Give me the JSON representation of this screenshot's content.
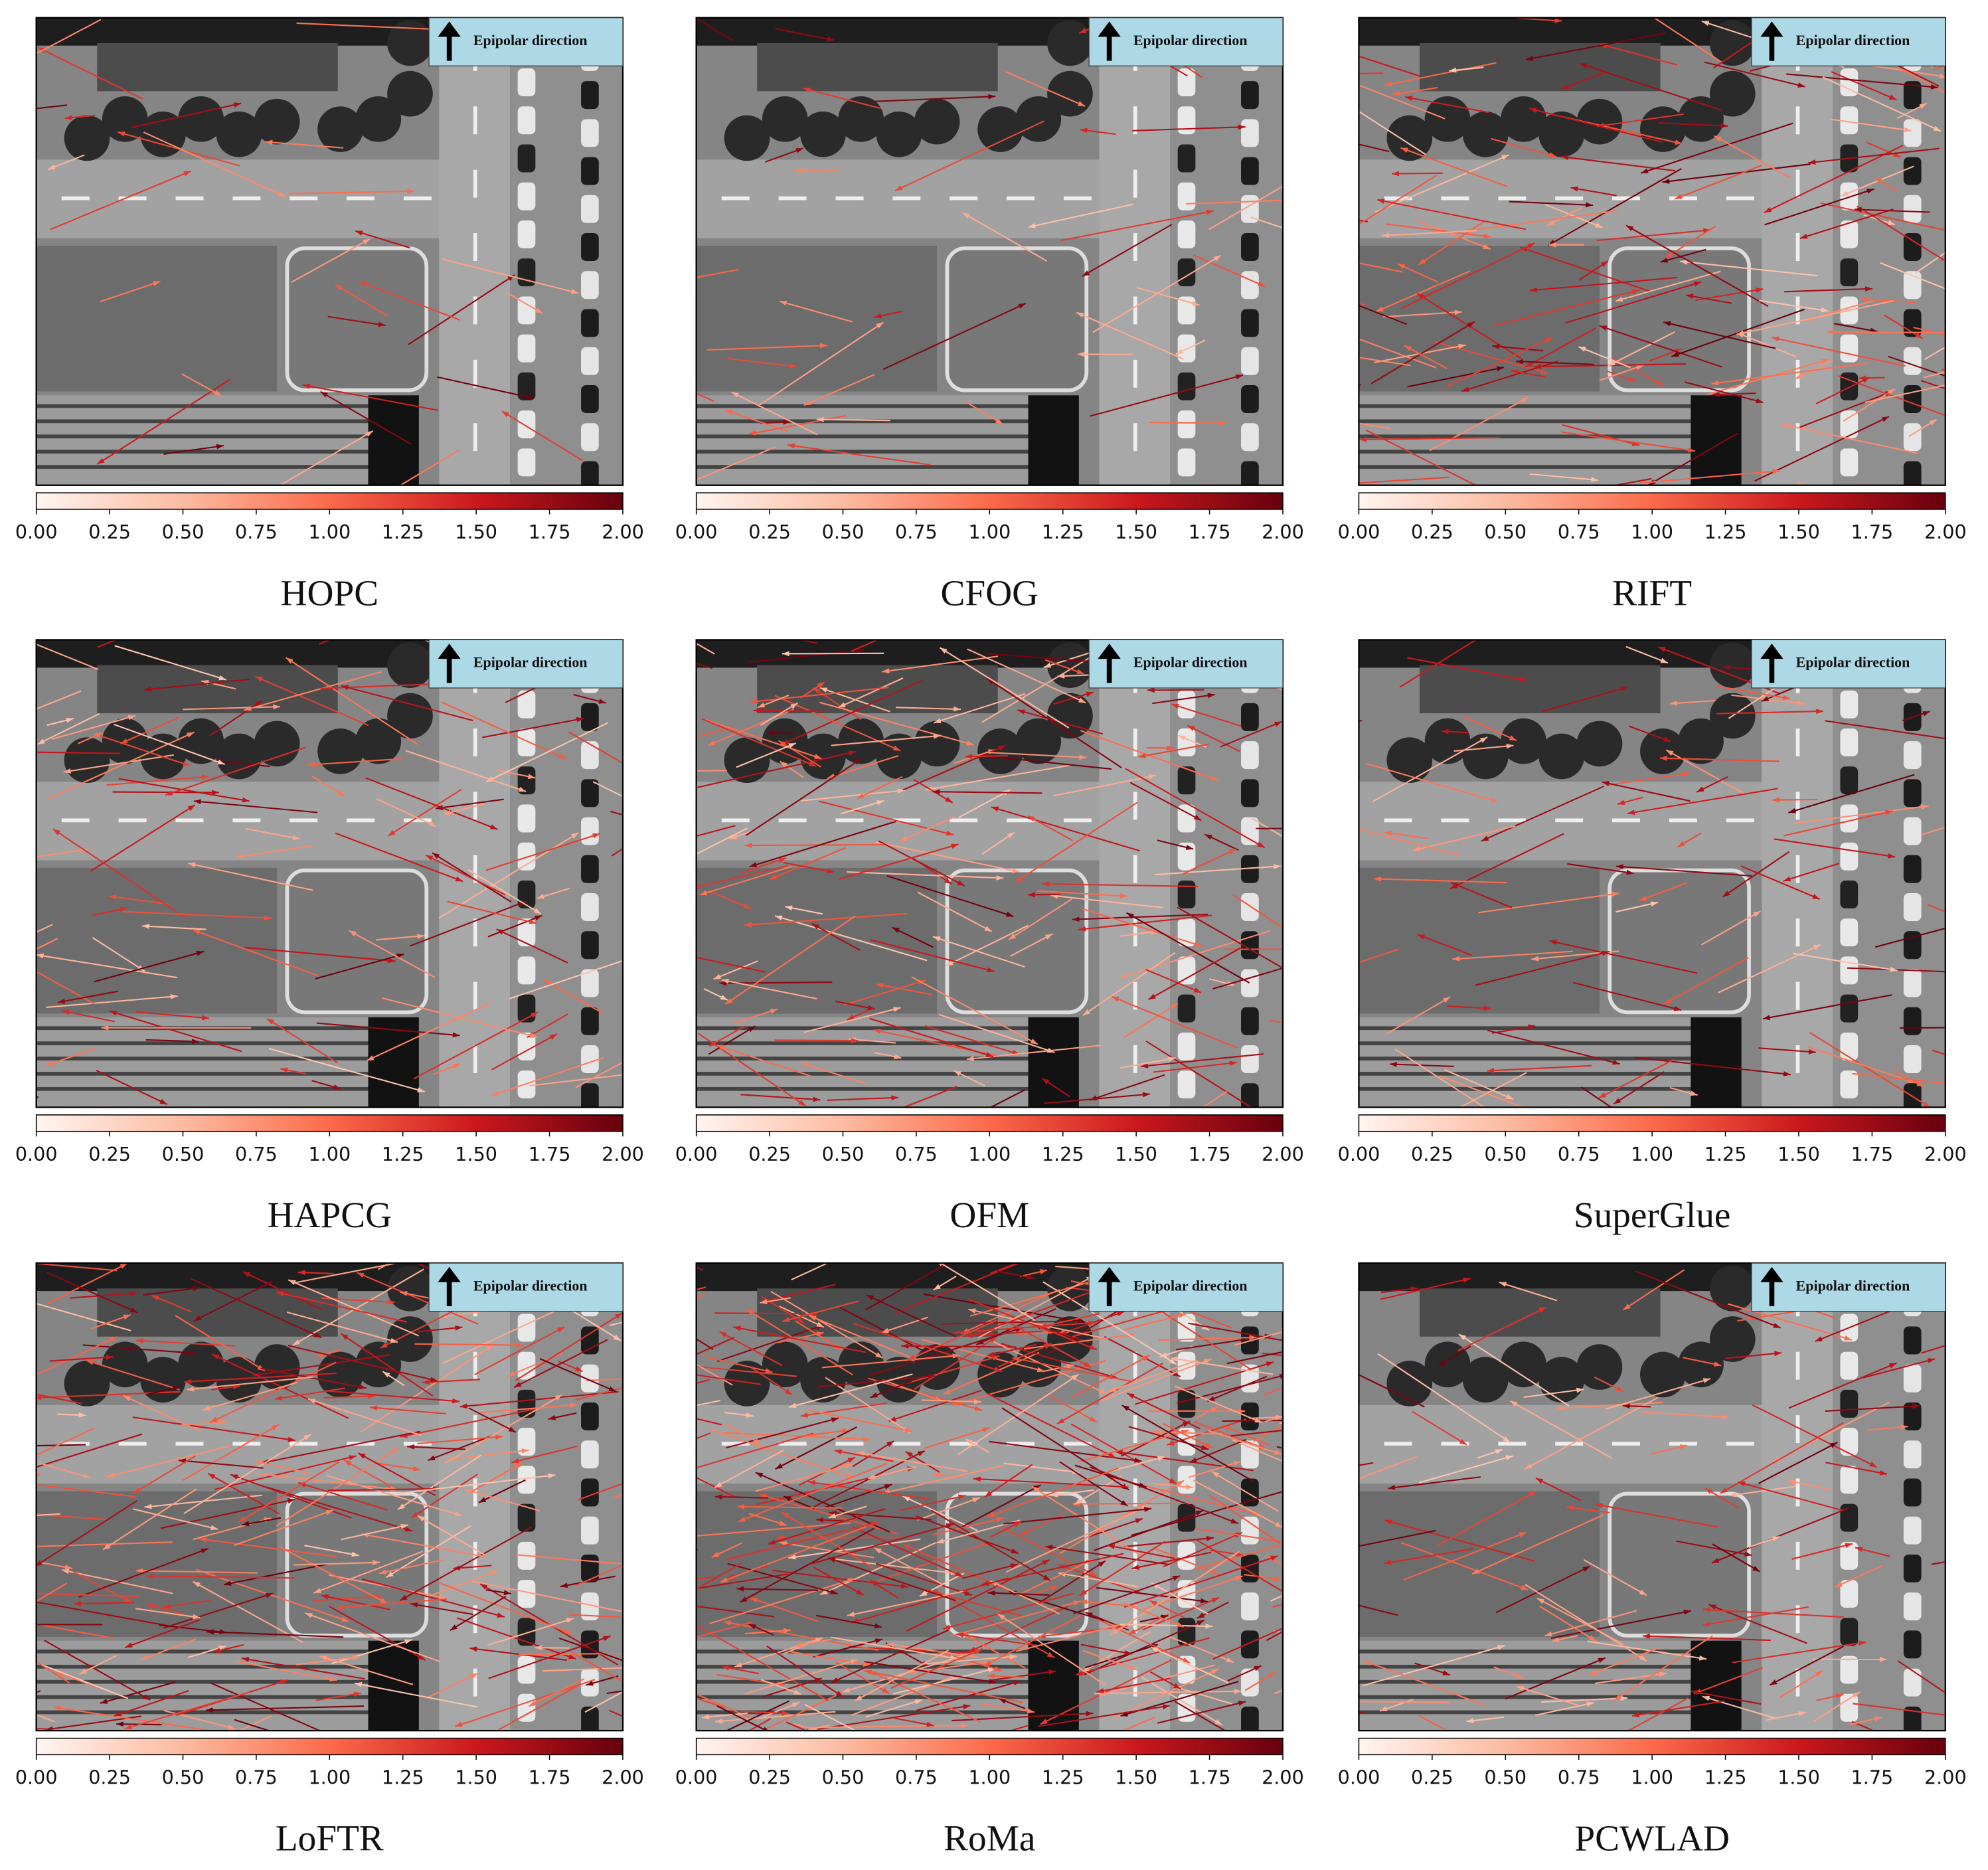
{
  "panels": [
    {
      "label": "HOPC",
      "annotation": "Epipolar direction",
      "colorbar": {
        "lim": [
          0,
          2
        ],
        "ticks": [
          {
            "value": 0,
            "label": "0.00"
          },
          {
            "value": 0.25,
            "label": "0.25"
          },
          {
            "value": 0.5,
            "label": "0.50"
          },
          {
            "value": 0.75,
            "label": "0.75"
          },
          {
            "value": 1,
            "label": "1.00"
          },
          {
            "value": 1.25,
            "label": "1.25"
          },
          {
            "value": 1.5,
            "label": "1.50"
          },
          {
            "value": 1.75,
            "label": "1.75"
          },
          {
            "value": 2,
            "label": "2.00"
          }
        ]
      }
    },
    {
      "label": "CFOG",
      "annotation": "Epipolar direction",
      "colorbar": {
        "lim": [
          0,
          2
        ],
        "ticks": [
          {
            "value": 0,
            "label": "0.00"
          },
          {
            "value": 0.25,
            "label": "0.25"
          },
          {
            "value": 0.5,
            "label": "0.50"
          },
          {
            "value": 0.75,
            "label": "0.75"
          },
          {
            "value": 1,
            "label": "1.00"
          },
          {
            "value": 1.25,
            "label": "1.25"
          },
          {
            "value": 1.5,
            "label": "1.50"
          },
          {
            "value": 1.75,
            "label": "1.75"
          },
          {
            "value": 2,
            "label": "2.00"
          }
        ]
      }
    },
    {
      "label": "RIFT",
      "annotation": "Epipolar direction",
      "colorbar": {
        "lim": [
          0,
          2
        ],
        "ticks": [
          {
            "value": 0,
            "label": "0.00"
          },
          {
            "value": 0.25,
            "label": "0.25"
          },
          {
            "value": 0.5,
            "label": "0.50"
          },
          {
            "value": 0.75,
            "label": "0.75"
          },
          {
            "value": 1,
            "label": "1.00"
          },
          {
            "value": 1.25,
            "label": "1.25"
          },
          {
            "value": 1.5,
            "label": "1.50"
          },
          {
            "value": 1.75,
            "label": "1.75"
          },
          {
            "value": 2,
            "label": "2.00"
          }
        ]
      }
    },
    {
      "label": "HAPCG",
      "annotation": "Epipolar direction",
      "colorbar": {
        "lim": [
          0,
          2
        ],
        "ticks": [
          {
            "value": 0,
            "label": "0.00"
          },
          {
            "value": 0.25,
            "label": "0.25"
          },
          {
            "value": 0.5,
            "label": "0.50"
          },
          {
            "value": 0.75,
            "label": "0.75"
          },
          {
            "value": 1,
            "label": "1.00"
          },
          {
            "value": 1.25,
            "label": "1.25"
          },
          {
            "value": 1.5,
            "label": "1.50"
          },
          {
            "value": 1.75,
            "label": "1.75"
          },
          {
            "value": 2,
            "label": "2.00"
          }
        ]
      }
    },
    {
      "label": "OFM",
      "annotation": "Epipolar direction",
      "colorbar": {
        "lim": [
          0,
          2
        ],
        "ticks": [
          {
            "value": 0,
            "label": "0.00"
          },
          {
            "value": 0.25,
            "label": "0.25"
          },
          {
            "value": 0.5,
            "label": "0.50"
          },
          {
            "value": 0.75,
            "label": "0.75"
          },
          {
            "value": 1,
            "label": "1.00"
          },
          {
            "value": 1.25,
            "label": "1.25"
          },
          {
            "value": 1.5,
            "label": "1.50"
          },
          {
            "value": 1.75,
            "label": "1.75"
          },
          {
            "value": 2,
            "label": "2.00"
          }
        ]
      }
    },
    {
      "label": "SuperGlue",
      "annotation": "Epipolar direction",
      "colorbar": {
        "lim": [
          0,
          2
        ],
        "ticks": [
          {
            "value": 0,
            "label": "0.00"
          },
          {
            "value": 0.25,
            "label": "0.25"
          },
          {
            "value": 0.5,
            "label": "0.50"
          },
          {
            "value": 0.75,
            "label": "0.75"
          },
          {
            "value": 1,
            "label": "1.00"
          },
          {
            "value": 1.25,
            "label": "1.25"
          },
          {
            "value": 1.5,
            "label": "1.50"
          },
          {
            "value": 1.75,
            "label": "1.75"
          },
          {
            "value": 2,
            "label": "2.00"
          }
        ]
      }
    },
    {
      "label": "LoFTR",
      "annotation": "Epipolar direction",
      "colorbar": {
        "lim": [
          0,
          2
        ],
        "ticks": [
          {
            "value": 0,
            "label": "0.00"
          },
          {
            "value": 0.25,
            "label": "0.25"
          },
          {
            "value": 0.5,
            "label": "0.50"
          },
          {
            "value": 0.75,
            "label": "0.75"
          },
          {
            "value": 1,
            "label": "1.00"
          },
          {
            "value": 1.25,
            "label": "1.25"
          },
          {
            "value": 1.5,
            "label": "1.50"
          },
          {
            "value": 1.75,
            "label": "1.75"
          },
          {
            "value": 2,
            "label": "2.00"
          }
        ]
      }
    },
    {
      "label": "RoMa",
      "annotation": "Epipolar direction",
      "colorbar": {
        "lim": [
          0,
          2
        ],
        "ticks": [
          {
            "value": 0,
            "label": "0.00"
          },
          {
            "value": 0.25,
            "label": "0.25"
          },
          {
            "value": 0.5,
            "label": "0.50"
          },
          {
            "value": 0.75,
            "label": "0.75"
          },
          {
            "value": 1,
            "label": "1.00"
          },
          {
            "value": 1.25,
            "label": "1.25"
          },
          {
            "value": 1.5,
            "label": "1.50"
          },
          {
            "value": 1.75,
            "label": "1.75"
          },
          {
            "value": 2,
            "label": "2.00"
          }
        ]
      }
    },
    {
      "label": "PCWLAD",
      "annotation": "Epipolar direction",
      "colorbar": {
        "lim": [
          0,
          2
        ],
        "ticks": [
          {
            "value": 0,
            "label": "0.00"
          },
          {
            "value": 0.25,
            "label": "0.25"
          },
          {
            "value": 0.5,
            "label": "0.50"
          },
          {
            "value": 0.75,
            "label": "0.75"
          },
          {
            "value": 1,
            "label": "1.00"
          },
          {
            "value": 1.25,
            "label": "1.25"
          },
          {
            "value": 1.5,
            "label": "1.50"
          },
          {
            "value": 1.75,
            "label": "1.75"
          },
          {
            "value": 2,
            "label": "2.00"
          }
        ]
      }
    }
  ]
}
